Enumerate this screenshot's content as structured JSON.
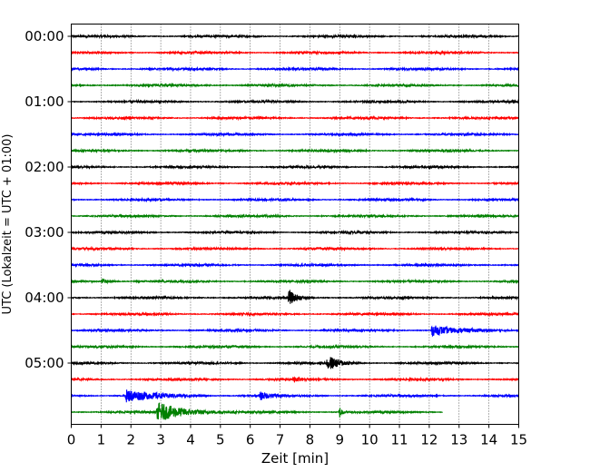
{
  "chart_data": {
    "type": "line",
    "title": "",
    "xlabel": "Zeit  [min]",
    "ylabel": "UTC (Lokalzeit = UTC + 01:00)",
    "xlim": [
      0,
      15
    ],
    "x_ticks": [
      "0",
      "1",
      "2",
      "3",
      "4",
      "5",
      "6",
      "7",
      "8",
      "9",
      "10",
      "11",
      "12",
      "13",
      "14",
      "15"
    ],
    "y_tick_labels": [
      "00:00",
      "01:00",
      "02:00",
      "03:00",
      "04:00",
      "05:00"
    ],
    "grid": "vertical dotted",
    "line_colors": [
      "#000000",
      "#ff0000",
      "#0000ff",
      "#008000"
    ],
    "trace_minutes": 15,
    "last_trace_end_min": 12.45,
    "traces": [
      {
        "start": "00:00",
        "events": []
      },
      {
        "start": "00:15",
        "events": []
      },
      {
        "start": "00:30",
        "events": []
      },
      {
        "start": "00:45",
        "events": []
      },
      {
        "start": "01:00",
        "events": []
      },
      {
        "start": "01:15",
        "events": []
      },
      {
        "start": "01:30",
        "events": []
      },
      {
        "start": "01:45",
        "events": []
      },
      {
        "start": "02:00",
        "events": []
      },
      {
        "start": "02:15",
        "events": []
      },
      {
        "start": "02:30",
        "events": []
      },
      {
        "start": "02:45",
        "events": []
      },
      {
        "start": "03:00",
        "events": []
      },
      {
        "start": "03:15",
        "events": []
      },
      {
        "start": "03:30",
        "events": []
      },
      {
        "start": "03:45",
        "events": [
          {
            "t": 1.05,
            "amp": 0.4,
            "dur": 0.2
          }
        ]
      },
      {
        "start": "04:00",
        "events": [
          {
            "t": 7.3,
            "amp": 0.95,
            "dur": 0.25
          }
        ]
      },
      {
        "start": "04:15",
        "events": []
      },
      {
        "start": "04:30",
        "events": [
          {
            "t": 12.1,
            "amp": 0.75,
            "dur": 0.7
          }
        ]
      },
      {
        "start": "04:45",
        "events": []
      },
      {
        "start": "05:00",
        "events": [
          {
            "t": 8.6,
            "amp": 1.0,
            "dur": 0.4
          }
        ]
      },
      {
        "start": "05:15",
        "events": [
          {
            "t": 7.45,
            "amp": 0.35,
            "dur": 0.2
          }
        ]
      },
      {
        "start": "05:30",
        "events": [
          {
            "t": 1.85,
            "amp": 0.85,
            "dur": 0.9
          },
          {
            "t": 6.35,
            "amp": 0.55,
            "dur": 0.3
          }
        ]
      },
      {
        "start": "05:45",
        "events": [
          {
            "t": 2.9,
            "amp": 1.3,
            "dur": 0.9
          },
          {
            "t": 9.0,
            "amp": 0.8,
            "dur": 0.1
          }
        ]
      }
    ]
  }
}
